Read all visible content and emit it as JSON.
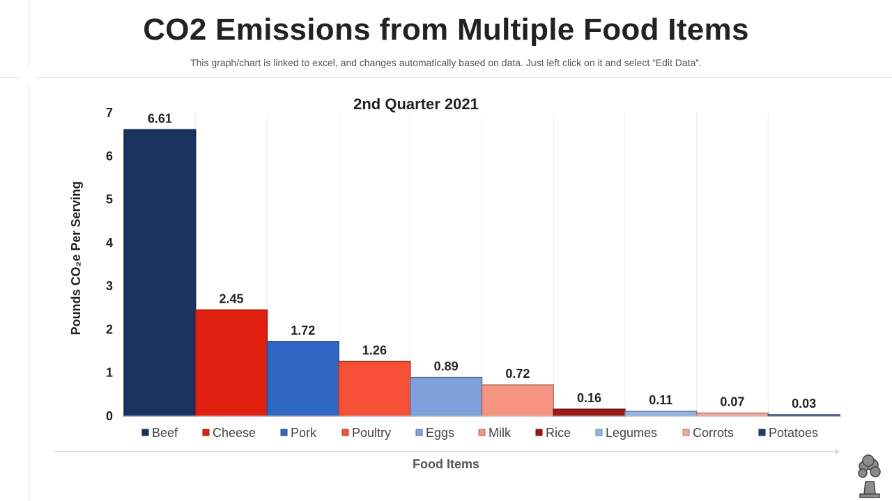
{
  "page": {
    "title": "CO2 Emissions from Multiple Food Items",
    "subtitle": "This graph/chart is linked to excel, and changes automatically based on data. Just left click on it and select “Edit Data”."
  },
  "chart_data": {
    "type": "bar",
    "title": "2nd Quarter 2021",
    "xlabel": "Food Items",
    "ylabel": "Pounds CO₂e Per Serving",
    "ylim": [
      0,
      7
    ],
    "yticks": [
      0,
      1,
      2,
      3,
      4,
      5,
      6,
      7
    ],
    "grid": "vertical",
    "legend_position": "bottom",
    "categories": [
      "Beef",
      "Cheese",
      "Pork",
      "Poultry",
      "Eggs",
      "Milk",
      "Rice",
      "Legumes",
      "Corrots",
      "Potatoes"
    ],
    "values": [
      6.61,
      2.45,
      1.72,
      1.26,
      0.89,
      0.72,
      0.16,
      0.11,
      0.07,
      0.03
    ],
    "labels": [
      "6.61",
      "2.45",
      "1.72",
      "1.26",
      "0.89",
      "0.72",
      "0.16",
      "0.11",
      "0.07",
      "0.03"
    ],
    "colors": [
      "#1a3260",
      "#e1200f",
      "#3067c4",
      "#f55036",
      "#7fa0da",
      "#f79583",
      "#991a12",
      "#93b2e6",
      "#f4a79a",
      "#1f3d73"
    ]
  },
  "decor": {
    "icon": "factory-smoke-icon"
  }
}
